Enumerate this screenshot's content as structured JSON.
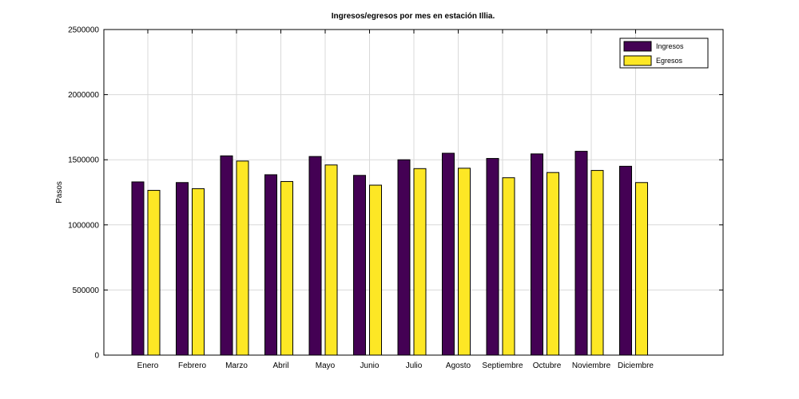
{
  "chart_data": {
    "type": "bar",
    "title": "Ingresos/egresos por mes en estación Illia.",
    "xlabel": "",
    "ylabel": "Pasos",
    "ylim": [
      0,
      2500000
    ],
    "yticks": [
      0,
      500000,
      1000000,
      1500000,
      2000000,
      2500000
    ],
    "grid": true,
    "legend_position": "top-right",
    "categories": [
      "Enero",
      "Febrero",
      "Marzo",
      "Abril",
      "Mayo",
      "Junio",
      "Julio",
      "Agosto",
      "Septiembre",
      "Octubre",
      "Noviembre",
      "Diciembre"
    ],
    "series": [
      {
        "name": "Ingresos",
        "color": "#440154",
        "values": [
          1330000,
          1325000,
          1530000,
          1385000,
          1525000,
          1380000,
          1500000,
          1550000,
          1510000,
          1545000,
          1565000,
          1450000
        ]
      },
      {
        "name": "Egresos",
        "color": "#fde725",
        "values": [
          1265000,
          1278000,
          1490000,
          1333000,
          1460000,
          1305000,
          1432000,
          1435000,
          1362000,
          1402000,
          1418000,
          1325000
        ]
      }
    ]
  }
}
